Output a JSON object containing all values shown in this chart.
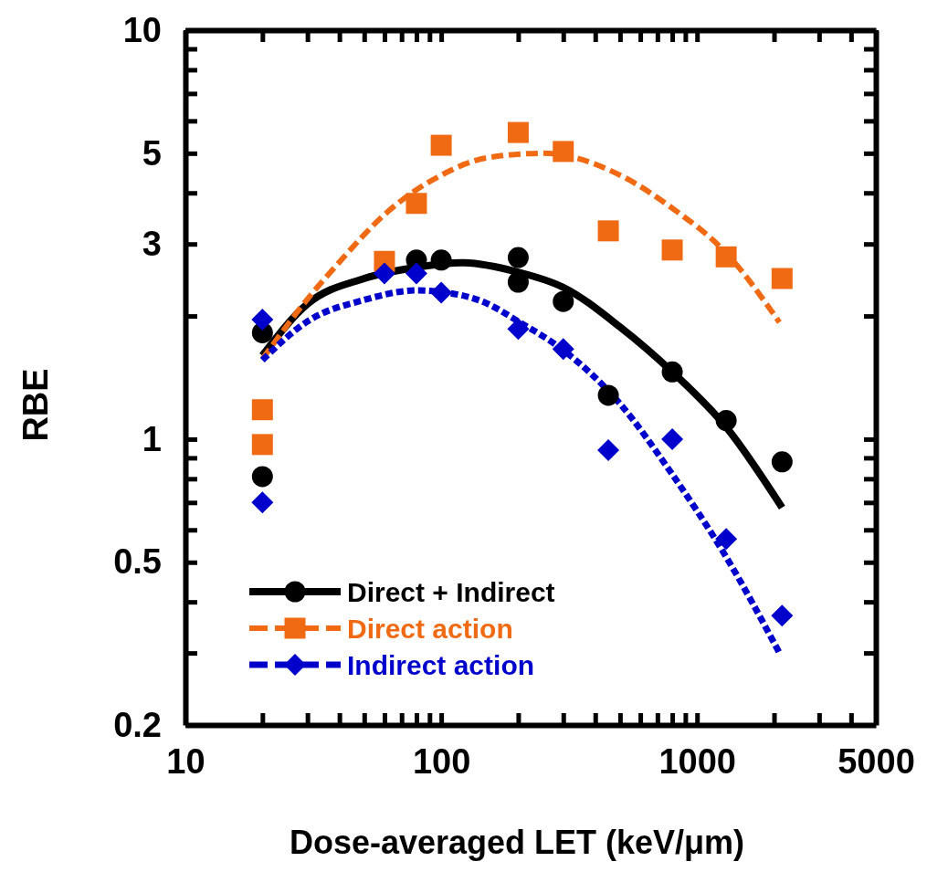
{
  "chart_data": {
    "type": "scatter",
    "xlabel": "Dose-averaged LET (keV/μm)",
    "ylabel": "RBE",
    "log": "xy",
    "xlim": [
      10,
      5000
    ],
    "ylim": [
      0.2,
      10
    ],
    "xticks": [
      10,
      {
        "value": 20,
        "label": null
      },
      {
        "value": 30,
        "label": null
      },
      {
        "value": 40,
        "label": null
      },
      {
        "value": 50,
        "label": null
      },
      {
        "value": 60,
        "label": null
      },
      {
        "value": 70,
        "label": null
      },
      {
        "value": 80,
        "label": null
      },
      {
        "value": 90,
        "label": null
      },
      100,
      {
        "value": 200,
        "label": null
      },
      {
        "value": 300,
        "label": null
      },
      {
        "value": 400,
        "label": null
      },
      {
        "value": 500,
        "label": null
      },
      {
        "value": 600,
        "label": null
      },
      {
        "value": 700,
        "label": null
      },
      {
        "value": 800,
        "label": null
      },
      {
        "value": 900,
        "label": null
      },
      1000,
      {
        "value": 2000,
        "label": null
      },
      {
        "value": 3000,
        "label": null
      },
      {
        "value": 4000,
        "label": null
      },
      5000
    ],
    "yticks": [
      0.2,
      {
        "value": 0.3,
        "label": null
      },
      {
        "value": 0.4,
        "label": null
      },
      0.5,
      {
        "value": 0.6,
        "label": null
      },
      {
        "value": 0.7,
        "label": null
      },
      {
        "value": 0.8,
        "label": null
      },
      {
        "value": 0.9,
        "label": null
      },
      1,
      {
        "value": 2,
        "label": null
      },
      3,
      {
        "value": 4,
        "label": null
      },
      5,
      {
        "value": 6,
        "label": null
      },
      {
        "value": 7,
        "label": null
      },
      {
        "value": 8,
        "label": null
      },
      {
        "value": 9,
        "label": null
      },
      10
    ],
    "grid": false,
    "legend": "bottom left",
    "series": [
      {
        "name": "Direct + Indirect",
        "color": "#000000",
        "marker": "circle",
        "x": [
          20,
          20,
          80,
          100,
          200,
          200,
          300,
          450,
          800,
          1300,
          2150
        ],
        "values": [
          1.82,
          0.81,
          2.74,
          2.74,
          2.78,
          2.42,
          2.17,
          1.28,
          1.46,
          1.11,
          0.88
        ]
      },
      {
        "name": "Direct action",
        "color": "#f06a14",
        "marker": "square",
        "x": [
          20,
          20,
          60,
          80,
          100,
          200,
          300,
          450,
          800,
          1300,
          2150
        ],
        "values": [
          1.18,
          0.97,
          2.72,
          3.77,
          5.23,
          5.62,
          5.05,
          3.23,
          2.9,
          2.79,
          2.47
        ]
      },
      {
        "name": "Indirect action",
        "color": "#0000cc",
        "marker": "diamond",
        "x": [
          20,
          20,
          60,
          80,
          100,
          200,
          300,
          450,
          800,
          1300,
          2150
        ],
        "values": [
          1.96,
          0.7,
          2.54,
          2.54,
          2.28,
          1.86,
          1.66,
          0.94,
          1.0,
          0.57,
          0.37
        ]
      },
      {
        "type": "line",
        "color": "#000000",
        "line_style": "solid",
        "marker": "none",
        "x": [
          20,
          30,
          50,
          80,
          120,
          200,
          300,
          500,
          800,
          1300,
          2150
        ],
        "values": [
          1.6,
          2.14,
          2.47,
          2.63,
          2.7,
          2.56,
          2.35,
          1.88,
          1.46,
          1.07,
          0.68
        ]
      },
      {
        "type": "line",
        "color": "#f06a14",
        "line_style": "dashed",
        "marker": "none",
        "x": [
          20,
          30,
          40,
          60,
          100,
          150,
          250,
          500,
          800,
          1300,
          2100
        ],
        "values": [
          1.57,
          2.2,
          2.71,
          3.54,
          4.42,
          4.87,
          5.0,
          4.42,
          3.67,
          2.85,
          1.93
        ]
      },
      {
        "type": "line",
        "color": "#0000cc",
        "line_style": "dotted",
        "marker": "none",
        "x": [
          20,
          30,
          50,
          80,
          100,
          150,
          200,
          300,
          500,
          800,
          1300,
          2100
        ],
        "values": [
          1.56,
          1.94,
          2.19,
          2.31,
          2.29,
          2.15,
          1.94,
          1.65,
          1.22,
          0.82,
          0.515,
          0.3
        ]
      }
    ]
  }
}
